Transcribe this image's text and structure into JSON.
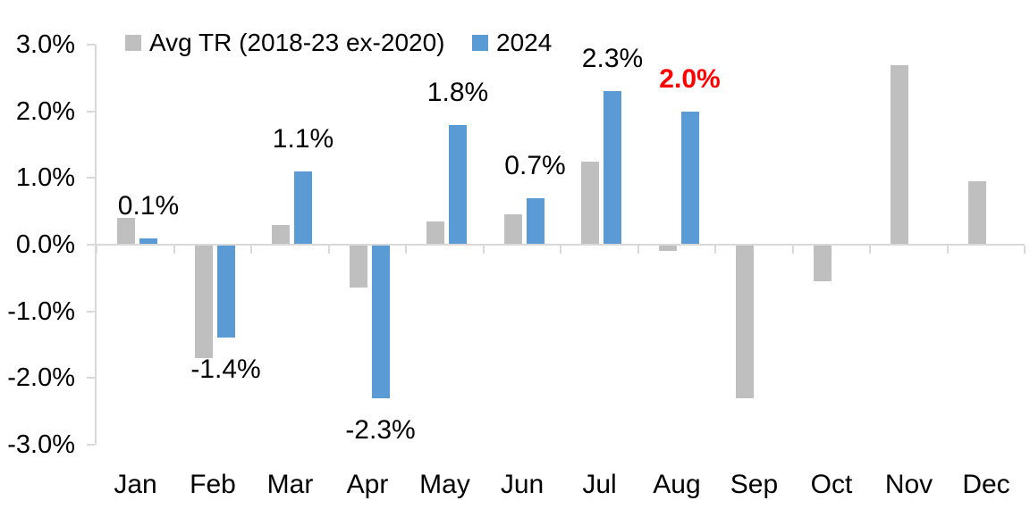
{
  "chart_data": {
    "type": "bar",
    "title": "",
    "categories": [
      "Jan",
      "Feb",
      "Mar",
      "Apr",
      "May",
      "Jun",
      "Jul",
      "Aug",
      "Sep",
      "Oct",
      "Nov",
      "Dec"
    ],
    "series": [
      {
        "name": "Avg TR (2018-23 ex-2020)",
        "color": "#bfbfbf",
        "values": [
          0.4,
          -1.7,
          0.3,
          -0.65,
          0.35,
          0.45,
          1.25,
          -0.1,
          -2.3,
          -0.55,
          2.7,
          0.95
        ]
      },
      {
        "name": "2024",
        "color": "#5b9bd5",
        "values": [
          0.1,
          -1.4,
          1.1,
          -2.3,
          1.8,
          0.7,
          2.3,
          2.0,
          null,
          null,
          null,
          null
        ]
      }
    ],
    "data_labels": [
      {
        "month": "Jan",
        "month_index": 0,
        "text": "0.1%",
        "color": "#000000",
        "bold": false
      },
      {
        "month": "Feb",
        "month_index": 1,
        "text": "-1.4%",
        "color": "#000000",
        "bold": false
      },
      {
        "month": "Mar",
        "month_index": 2,
        "text": "1.1%",
        "color": "#000000",
        "bold": false
      },
      {
        "month": "Apr",
        "month_index": 3,
        "text": "-2.3%",
        "color": "#000000",
        "bold": false
      },
      {
        "month": "May",
        "month_index": 4,
        "text": "1.8%",
        "color": "#000000",
        "bold": false
      },
      {
        "month": "Jun",
        "month_index": 5,
        "text": "0.7%",
        "color": "#000000",
        "bold": false
      },
      {
        "month": "Jul",
        "month_index": 6,
        "text": "2.3%",
        "color": "#000000",
        "bold": false
      },
      {
        "month": "Aug",
        "month_index": 7,
        "text": "2.0%",
        "color": "#ff0000",
        "bold": true
      }
    ],
    "y_axis": {
      "min": -3,
      "max": 3,
      "tick_step": 1,
      "tick_labels": [
        "3.0%",
        "2.0%",
        "1.0%",
        "0.0%",
        "-1.0%",
        "-2.0%",
        "-3.0%"
      ]
    },
    "grid": false,
    "legend_position": "top",
    "colors": {
      "axis": "#d9d9d9",
      "text": "#000000",
      "highlight_label": "#ff0000",
      "background": "#ffffff"
    }
  }
}
